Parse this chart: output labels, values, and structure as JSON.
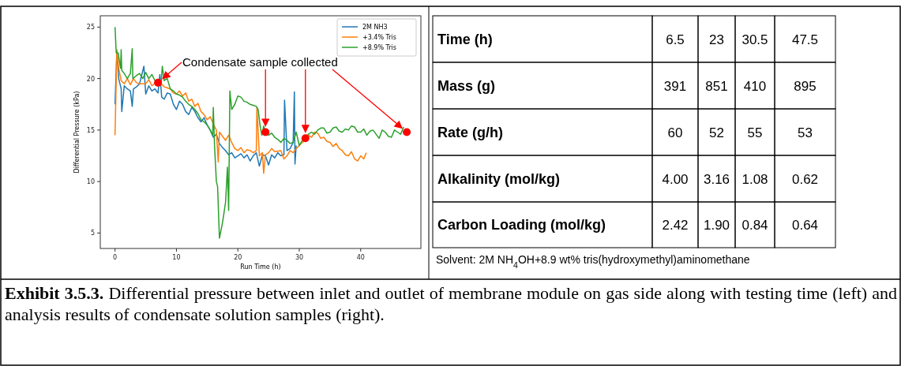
{
  "chart_data": [
    {
      "type": "line",
      "xlabel": "Run Time (h)",
      "ylabel": "Differential Pressure (kPa)",
      "xlim": [
        -2.4,
        49.8
      ],
      "ylim": [
        3.5,
        26.1
      ],
      "xticks": [
        0,
        10,
        20,
        30,
        40
      ],
      "yticks": [
        5,
        10,
        15,
        20,
        25
      ],
      "legend": "top right",
      "annotations": [
        {
          "text": "Condensate sample collected",
          "x": 7,
          "y": 19.6
        }
      ],
      "series": [
        {
          "name": "2M NH3",
          "color": "#1f77b4",
          "x": [
            0,
            0.3,
            0.6,
            1,
            1.1,
            1.5,
            2,
            2.5,
            2.8,
            3,
            3.5,
            4,
            4.7,
            5,
            5.5,
            6,
            6.5,
            7,
            7.3,
            7.6,
            8,
            8.5,
            9,
            9.5,
            10,
            10.5,
            11,
            11.5,
            12,
            12.5,
            13,
            13.5,
            14,
            14.5,
            15,
            15.5,
            16,
            16.5,
            17,
            17.5,
            18,
            18.5,
            19,
            19.5,
            20,
            20.5,
            21,
            21.5,
            22,
            22.5,
            23,
            23.5,
            24,
            24.5,
            25,
            25.5,
            26,
            26.5,
            27,
            27.5,
            27.6,
            28,
            28.5,
            29,
            29.2,
            29.3,
            29.5
          ],
          "values": [
            17.5,
            22.7,
            20,
            19,
            16.8,
            19.3,
            19,
            18.8,
            17.3,
            19,
            19.2,
            19.5,
            21.2,
            18.5,
            19.3,
            18.8,
            19,
            18.6,
            20.4,
            18.2,
            18,
            18.6,
            18.5,
            17.5,
            17,
            17.8,
            17.5,
            16.8,
            16.5,
            17.2,
            16.8,
            16.2,
            15.8,
            16.2,
            15.5,
            15,
            14.3,
            14.6,
            13.7,
            13.3,
            13,
            12.6,
            12.8,
            12.3,
            12.5,
            12.7,
            12.3,
            12.6,
            12,
            12.5,
            12.8,
            11.5,
            12.6,
            12.5,
            11.6,
            12.6,
            12.3,
            12.8,
            12.5,
            12.6,
            17.9,
            13,
            13.2,
            13.8,
            18.7,
            11.7,
            13.5
          ]
        },
        {
          "name": "+3.4% Tris",
          "color": "#ff7f0e",
          "x": [
            0,
            0.3,
            0.6,
            1,
            1.5,
            2,
            2.5,
            3,
            3.5,
            4,
            5,
            5.5,
            6,
            7,
            7.5,
            8,
            9,
            9.5,
            10,
            10.5,
            11,
            11.5,
            12,
            12.5,
            13,
            13.5,
            14,
            14.5,
            15,
            15.5,
            16,
            16.5,
            16.8,
            17,
            17.5,
            18,
            18.5,
            19,
            19.5,
            20,
            20.5,
            21,
            21.5,
            22,
            22.5,
            23,
            23.1,
            23.5,
            24,
            24.2,
            24.5,
            25,
            25.5,
            26,
            27,
            27.5,
            28,
            28.5,
            29,
            29.5,
            30,
            30.5,
            31,
            31.5,
            32,
            32.5,
            33,
            33.5,
            34,
            34.5,
            35,
            35.5,
            36,
            36.5,
            37,
            37.5,
            38,
            38.5,
            39,
            39.5,
            40,
            40.5,
            40.9
          ],
          "values": [
            14.5,
            22.8,
            21,
            19.8,
            19.5,
            20,
            19.4,
            20,
            19.6,
            19.5,
            19.5,
            19.9,
            19.3,
            19.8,
            19.5,
            19.2,
            19,
            18.6,
            18.5,
            18.8,
            18.3,
            18.6,
            17.8,
            18,
            17.3,
            17.6,
            16.8,
            16.5,
            16,
            16.3,
            15.6,
            15,
            11.9,
            14.8,
            14.4,
            14,
            14.5,
            13.8,
            13.2,
            13,
            13.3,
            12.8,
            13.1,
            13,
            12.8,
            13,
            17.2,
            12.5,
            12.8,
            10.8,
            12.6,
            12.8,
            13.2,
            12.9,
            13,
            12.2,
            12.5,
            13,
            12.8,
            13.2,
            13.5,
            13.8,
            14,
            14.5,
            14.3,
            14.8,
            14.7,
            14.2,
            14.3,
            13.9,
            13.8,
            13.4,
            13.7,
            13.2,
            13,
            12.6,
            12.5,
            12.9,
            12.2,
            12,
            12.5,
            12.2,
            12.8
          ]
        },
        {
          "name": "+8.9% Tris",
          "color": "#2ca02c",
          "x": [
            0,
            0.2,
            0.5,
            0.9,
            1,
            1.1,
            1.5,
            2,
            2.5,
            2.8,
            2.9,
            3.5,
            4,
            4.5,
            5,
            5.5,
            6,
            6.5,
            7,
            7.5,
            7.7,
            8,
            8.5,
            9,
            9.5,
            10,
            10.5,
            11,
            11.5,
            12,
            12.5,
            13,
            13.5,
            14,
            14.5,
            15,
            15.5,
            15.9,
            16,
            16.2,
            16.5,
            16.7,
            17,
            17.5,
            18,
            18.3,
            18.5,
            18.7,
            19,
            19.5,
            20,
            20.5,
            21,
            21.5,
            22,
            22.5,
            23,
            23.3,
            23.6,
            23.9,
            24.2,
            24.5,
            25,
            25.5,
            26,
            26.5,
            27,
            27.5,
            28,
            28.5,
            29,
            29.5,
            30,
            30.5,
            31,
            31.5,
            32,
            32.5,
            33,
            33.5,
            34,
            34.5,
            35,
            35.5,
            36,
            36.5,
            37,
            37.5,
            38,
            38.5,
            39,
            39.5,
            40,
            40.5,
            41,
            41.5,
            42,
            42.5,
            43,
            43.5,
            44,
            44.5,
            45,
            45.5,
            46,
            46.5,
            47
          ],
          "values": [
            25,
            22.5,
            22.5,
            21,
            22.8,
            20.8,
            20.5,
            20,
            20.5,
            22.9,
            20,
            20.3,
            20.5,
            20,
            20.6,
            20,
            20.4,
            19.8,
            19.8,
            19.5,
            21.2,
            19.8,
            20,
            19,
            18.8,
            18.5,
            18.4,
            18.2,
            17.8,
            17.5,
            17.3,
            17,
            16.6,
            16,
            15.8,
            15.5,
            15,
            14.5,
            17.2,
            13.5,
            10,
            9.5,
            4.5,
            6,
            8,
            11.4,
            7.2,
            18.8,
            17,
            17.5,
            18.3,
            18.2,
            17.8,
            17.7,
            17.5,
            17.4,
            17.3,
            17,
            15.5,
            14.5,
            15.4,
            14.8,
            14.5,
            14.7,
            14.3,
            14.1,
            13.8,
            14.2,
            14,
            13.7,
            13.8,
            14.8,
            13.5,
            14,
            14.3,
            14.6,
            14.8,
            14.6,
            15,
            15.2,
            15.2,
            14.7,
            14.8,
            15.2,
            15.3,
            14.9,
            14.8,
            15.1,
            15,
            15.4,
            15.3,
            14.8,
            14.8,
            15.1,
            14.5,
            14.9,
            15,
            14.6,
            14.2,
            15,
            14.8,
            14.4,
            14.3,
            15,
            14.8,
            14.6,
            15.3
          ]
        },
        {
          "type": "scatter",
          "color": "#ff0000",
          "x": [
            7,
            24.5,
            31,
            47.5
          ],
          "values": [
            19.6,
            14.8,
            14.2,
            14.8
          ]
        }
      ]
    },
    {
      "type": "other",
      "annotations": [
        "Time (h)",
        "6.5",
        "23",
        "30.5",
        "47.5",
        "Mass (g)",
        "391",
        "851",
        "410",
        "895",
        "Rate (g/h)",
        "60",
        "52",
        "55",
        "53",
        "Alkalinity (mol/kg)",
        "4.00",
        "3.16",
        "1.08",
        "0.62",
        "Carbon Loading (mol/kg)",
        "2.42",
        "1.90",
        "0.84",
        "0.64",
        "Solvent: 2M NH$_{4}$OH+8.9 wt% tris(hydroxymethyl)aminomethane",
        "Exhibit 3.5.3.",
        "Differential pressure between inlet and outlet of membrane module on gas side along with testing time (left) and analysis results of condensate solution samples (right)."
      ]
    }
  ]
}
